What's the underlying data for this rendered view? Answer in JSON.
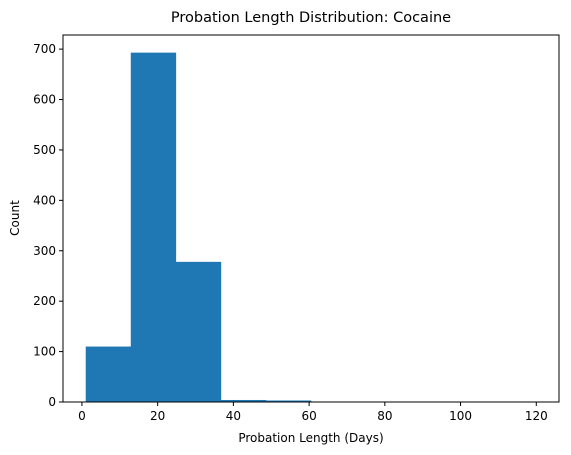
{
  "chart_data": {
    "type": "bar",
    "title": "Probation Length Distribution: Cocaine",
    "xlabel": "Probation Length (Days)",
    "ylabel": "Count",
    "bin_edges": [
      1,
      12.9,
      24.8,
      36.7,
      48.6,
      60.5,
      72.4,
      84.3,
      96.2,
      108.1,
      120
    ],
    "values": [
      110,
      693,
      278,
      4,
      3,
      0,
      0,
      0,
      0,
      1
    ],
    "xlim": [
      -5,
      126
    ],
    "ylim": [
      0,
      728
    ],
    "xticks": [
      0,
      20,
      40,
      60,
      80,
      100,
      120
    ],
    "yticks": [
      0,
      100,
      200,
      300,
      400,
      500,
      600,
      700
    ],
    "bar_color": "#1f77b4",
    "grid": false,
    "legend": "none"
  }
}
